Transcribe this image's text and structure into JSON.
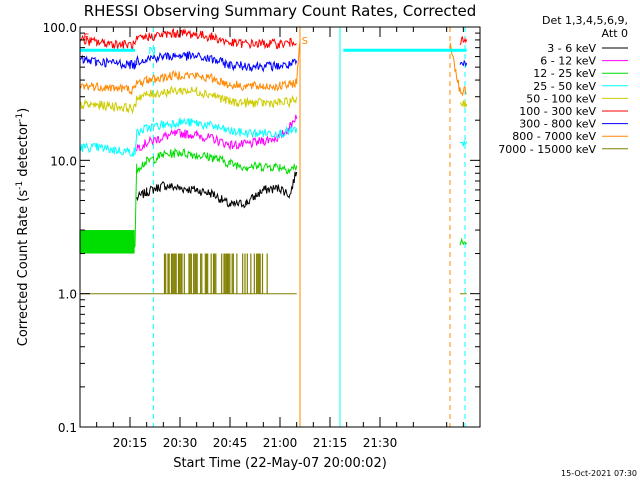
{
  "chart_data": {
    "type": "line",
    "title": "RHESSI Observing Summary Count Rates, Corrected",
    "xlabel": "Start Time (22-May-07 20:00:02)",
    "ylabel": "Corrected Count Rate (s⁻¹ detector⁻¹)",
    "ylabel_main": "Corrected Count Rate (s",
    "ylabel_sup1": "-1",
    "ylabel_mid": " detector",
    "ylabel_sup2": "-1",
    "ylabel_end": ")",
    "y_scale": "log",
    "ylim": [
      0.1,
      100
    ],
    "xlim_minutes": [
      0,
      120
    ],
    "x_ticks": [
      {
        "minute": 15,
        "label": "20:15"
      },
      {
        "minute": 30,
        "label": "20:30"
      },
      {
        "minute": 45,
        "label": "20:45"
      },
      {
        "minute": 60,
        "label": "21:00"
      },
      {
        "minute": 75,
        "label": "21:15"
      },
      {
        "minute": 90,
        "label": "21:30"
      }
    ],
    "y_ticks": [
      {
        "value": 100,
        "label": "100.0"
      },
      {
        "value": 10,
        "label": "10.0"
      },
      {
        "value": 1,
        "label": "1.0"
      },
      {
        "value": 0.1,
        "label": "0.1"
      }
    ],
    "legend_header_1": "Det 1,3,4,5,6,9,",
    "legend_header_2": "Att 0",
    "legend_position": "top-right outside",
    "series": [
      {
        "name": "3 - 6 keV",
        "color": "#000000",
        "points": [
          [
            17,
            5.2
          ],
          [
            20,
            5.8
          ],
          [
            25,
            6.5
          ],
          [
            30,
            6.2
          ],
          [
            35,
            6.0
          ],
          [
            40,
            5.6
          ],
          [
            45,
            4.6
          ],
          [
            50,
            4.8
          ],
          [
            55,
            6.0
          ],
          [
            60,
            6.2
          ],
          [
            63,
            5.5
          ],
          [
            65,
            8.5
          ]
        ]
      },
      {
        "name": "6 - 12 keV",
        "color": "#ff00ff",
        "points": [
          [
            17,
            12.5
          ],
          [
            20,
            13.5
          ],
          [
            25,
            15.0
          ],
          [
            30,
            16.0
          ],
          [
            35,
            15.5
          ],
          [
            40,
            14.5
          ],
          [
            45,
            13.0
          ],
          [
            50,
            13.2
          ],
          [
            55,
            14.0
          ],
          [
            60,
            15.0
          ],
          [
            63,
            18.0
          ],
          [
            65,
            22.0
          ]
        ]
      },
      {
        "name": "12 - 25 keV",
        "color": "#00dd00",
        "points": [
          [
            0,
            2.4
          ],
          [
            5,
            2.4
          ],
          [
            10,
            2.3
          ],
          [
            16.5,
            2.3
          ],
          [
            17,
            8.8
          ],
          [
            20,
            9.8
          ],
          [
            25,
            11.0
          ],
          [
            30,
            11.5
          ],
          [
            35,
            11.0
          ],
          [
            40,
            10.5
          ],
          [
            45,
            9.5
          ],
          [
            50,
            9.0
          ],
          [
            55,
            9.0
          ],
          [
            60,
            9.0
          ],
          [
            63,
            8.5
          ],
          [
            65,
            9.0
          ],
          [
            114,
            2.4
          ],
          [
            116,
            2.4
          ]
        ]
      },
      {
        "name": "25 - 50 keV",
        "color": "#00ffff",
        "points": [
          [
            0,
            12.5
          ],
          [
            5,
            12.5
          ],
          [
            10,
            12.0
          ],
          [
            16.5,
            11.5
          ],
          [
            17,
            16.0
          ],
          [
            20,
            17.5
          ],
          [
            25,
            18.5
          ],
          [
            30,
            19.5
          ],
          [
            35,
            19.0
          ],
          [
            40,
            18.0
          ],
          [
            45,
            16.5
          ],
          [
            50,
            16.0
          ],
          [
            55,
            16.0
          ],
          [
            60,
            16.0
          ],
          [
            63,
            16.5
          ],
          [
            65,
            17.0
          ],
          [
            114,
            13.0
          ],
          [
            116,
            13.0
          ]
        ]
      },
      {
        "name": "50 - 100 keV",
        "color": "#cccc00",
        "points": [
          [
            0,
            26.0
          ],
          [
            5,
            26.0
          ],
          [
            10,
            25.5
          ],
          [
            16.5,
            24.5
          ],
          [
            17,
            30.0
          ],
          [
            20,
            31.0
          ],
          [
            25,
            32.5
          ],
          [
            30,
            33.5
          ],
          [
            35,
            33.0
          ],
          [
            40,
            31.0
          ],
          [
            45,
            27.5
          ],
          [
            50,
            27.0
          ],
          [
            55,
            27.0
          ],
          [
            60,
            27.0
          ],
          [
            63,
            27.5
          ],
          [
            65,
            29.0
          ],
          [
            114,
            27.0
          ],
          [
            116,
            27.0
          ]
        ]
      },
      {
        "name": "100 - 300 keV",
        "color": "#ff0000",
        "points": [
          [
            0,
            80.0
          ],
          [
            5,
            77.0
          ],
          [
            10,
            75.0
          ],
          [
            16.5,
            73.0
          ],
          [
            17,
            80.0
          ],
          [
            20,
            84.0
          ],
          [
            25,
            88.0
          ],
          [
            30,
            90.0
          ],
          [
            35,
            88.0
          ],
          [
            40,
            84.0
          ],
          [
            45,
            76.0
          ],
          [
            50,
            75.0
          ],
          [
            55,
            75.0
          ],
          [
            60,
            75.0
          ],
          [
            63,
            76.0
          ],
          [
            65,
            80.0
          ],
          [
            114,
            78.0
          ],
          [
            116,
            78.0
          ]
        ]
      },
      {
        "name": "300 - 800 keV",
        "color": "#0000ff",
        "points": [
          [
            0,
            57.0
          ],
          [
            5,
            55.0
          ],
          [
            10,
            54.0
          ],
          [
            16.5,
            52.0
          ],
          [
            17,
            56.0
          ],
          [
            20,
            58.0
          ],
          [
            25,
            60.0
          ],
          [
            30,
            61.0
          ],
          [
            35,
            60.0
          ],
          [
            40,
            57.0
          ],
          [
            45,
            52.0
          ],
          [
            50,
            51.0
          ],
          [
            55,
            51.0
          ],
          [
            60,
            51.0
          ],
          [
            63,
            52.0
          ],
          [
            65,
            54.0
          ],
          [
            114,
            52.0
          ],
          [
            116,
            52.0
          ]
        ]
      },
      {
        "name": "800 - 7000 keV",
        "color": "#ff8800",
        "points": [
          [
            0,
            36.0
          ],
          [
            5,
            36.0
          ],
          [
            10,
            35.0
          ],
          [
            16.5,
            34.0
          ],
          [
            17,
            38.0
          ],
          [
            20,
            40.0
          ],
          [
            25,
            42.0
          ],
          [
            30,
            44.0
          ],
          [
            35,
            43.0
          ],
          [
            40,
            41.0
          ],
          [
            45,
            37.0
          ],
          [
            50,
            36.0
          ],
          [
            55,
            36.0
          ],
          [
            60,
            36.0
          ],
          [
            63,
            37.0
          ],
          [
            65,
            39.0
          ],
          [
            66,
            78.0
          ],
          [
            111,
            78.0
          ],
          [
            114,
            33.0
          ],
          [
            116,
            33.0
          ]
        ]
      },
      {
        "name": "7000 - 15000 keV",
        "color": "#808000",
        "points": [
          [
            0,
            1.0
          ],
          [
            20,
            1.0
          ],
          [
            25,
            1.0
          ],
          [
            30,
            1.0
          ],
          [
            35,
            1.0
          ],
          [
            40,
            1.0
          ],
          [
            45,
            1.0
          ],
          [
            50,
            1.0
          ],
          [
            55,
            1.0
          ],
          [
            60,
            1.0
          ],
          [
            65,
            1.0
          ],
          [
            114,
            1.0
          ],
          [
            116,
            1.0
          ]
        ]
      }
    ],
    "annotations": [
      {
        "text": "N",
        "minute": 20.5,
        "value": 67,
        "color": "#00ffff"
      },
      {
        "text": "S",
        "minute": 66.5,
        "value": 80,
        "color": "#ff8800"
      },
      {
        "text": "F",
        "minute": 1.0,
        "value": 85,
        "color": "#ff0000"
      }
    ],
    "vlines": [
      {
        "minute": 22,
        "color": "#00ffff",
        "dashed": true
      },
      {
        "minute": 66,
        "color": "#ff8800",
        "dashed": false
      },
      {
        "minute": 78,
        "color": "#00ffff",
        "dashed": false
      },
      {
        "minute": 111,
        "color": "#ff8800",
        "dashed": true
      },
      {
        "minute": 115.5,
        "color": "#00ffff",
        "dashed": true
      }
    ],
    "hbars": [
      {
        "from": 0,
        "to": 16.5,
        "value": 67,
        "color": "#00ffff"
      },
      {
        "from": 79,
        "to": 116,
        "value": 67,
        "color": "#00ffff"
      }
    ],
    "olive_noise_range": [
      25,
      60
    ],
    "green_noise_range": [
      0,
      16.5
    ]
  },
  "footer": {
    "timestamp": "15-Oct-2021 07:30"
  }
}
